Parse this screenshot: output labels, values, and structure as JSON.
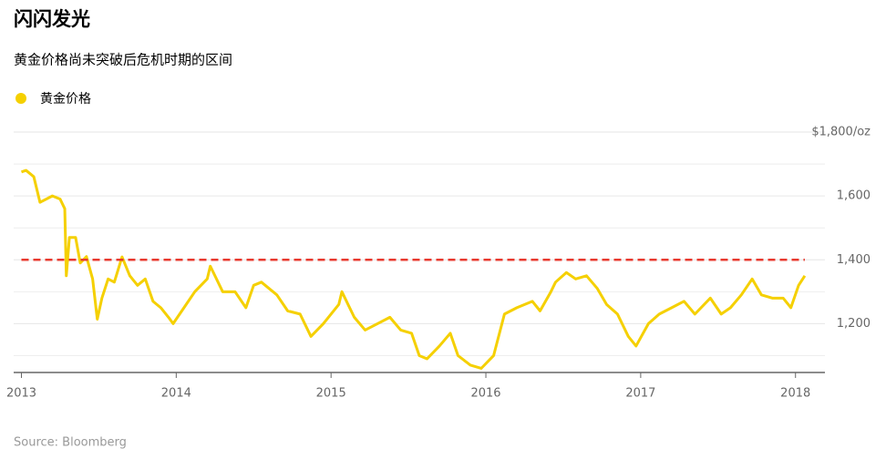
{
  "chart_data": {
    "type": "line",
    "title": "闪闪发光",
    "subtitle": "黄金价格尚未突破后危机时期的区间",
    "source": "Source: Bloomberg",
    "x": [
      2013.0,
      2013.03,
      2013.08,
      2013.12,
      2013.2,
      2013.25,
      2013.28,
      2013.29,
      2013.31,
      2013.35,
      2013.38,
      2013.42,
      2013.46,
      2013.49,
      2013.52,
      2013.56,
      2013.6,
      2013.65,
      2013.7,
      2013.75,
      2013.8,
      2013.85,
      2013.9,
      2013.95,
      2013.98,
      2014.05,
      2014.12,
      2014.2,
      2014.22,
      2014.3,
      2014.38,
      2014.45,
      2014.5,
      2014.55,
      2014.65,
      2014.72,
      2014.8,
      2014.87,
      2014.95,
      2015.05,
      2015.07,
      2015.15,
      2015.22,
      2015.3,
      2015.38,
      2015.45,
      2015.52,
      2015.57,
      2015.62,
      2015.7,
      2015.77,
      2015.82,
      2015.9,
      2015.97,
      2016.05,
      2016.12,
      2016.2,
      2016.3,
      2016.35,
      2016.42,
      2016.45,
      2016.52,
      2016.58,
      2016.65,
      2016.72,
      2016.78,
      2016.85,
      2016.92,
      2016.97,
      2017.05,
      2017.12,
      2017.2,
      2017.28,
      2017.35,
      2017.45,
      2017.52,
      2017.58,
      2017.65,
      2017.72,
      2017.78,
      2017.85,
      2017.92,
      2017.97,
      2018.02,
      2018.06
    ],
    "series": [
      {
        "name": "黄金价格",
        "color": "#f5d000",
        "values": [
          1675,
          1680,
          1660,
          1580,
          1600,
          1590,
          1560,
          1350,
          1470,
          1470,
          1390,
          1410,
          1340,
          1214,
          1280,
          1340,
          1330,
          1409,
          1350,
          1320,
          1340,
          1270,
          1250,
          1220,
          1200,
          1250,
          1300,
          1340,
          1380,
          1300,
          1300,
          1250,
          1320,
          1330,
          1290,
          1240,
          1230,
          1160,
          1200,
          1260,
          1300,
          1220,
          1180,
          1200,
          1220,
          1180,
          1170,
          1100,
          1090,
          1130,
          1170,
          1100,
          1070,
          1060,
          1100,
          1230,
          1250,
          1270,
          1240,
          1300,
          1330,
          1360,
          1340,
          1350,
          1310,
          1260,
          1230,
          1160,
          1130,
          1200,
          1230,
          1250,
          1270,
          1230,
          1280,
          1230,
          1250,
          1290,
          1340,
          1290,
          1280,
          1280,
          1250,
          1320,
          1350
        ]
      }
    ],
    "reference_line": {
      "value": 1400,
      "color": "#e8392f",
      "x": [
        2013.0,
        2018.06
      ]
    },
    "xlim": [
      2012.95,
      2018.19
    ],
    "xticks": [
      2013,
      2014,
      2015,
      2016,
      2017,
      2018
    ],
    "ylim": [
      1050,
      1800
    ],
    "yticks": [
      {
        "value": 1200,
        "label": "1,200"
      },
      {
        "value": 1400,
        "label": "1,400"
      },
      {
        "value": 1600,
        "label": "1,600"
      },
      {
        "value": 1800,
        "label": "$1,800/oz"
      }
    ],
    "minor_yticks": [
      1100,
      1300,
      1500,
      1700
    ],
    "grid": true
  }
}
